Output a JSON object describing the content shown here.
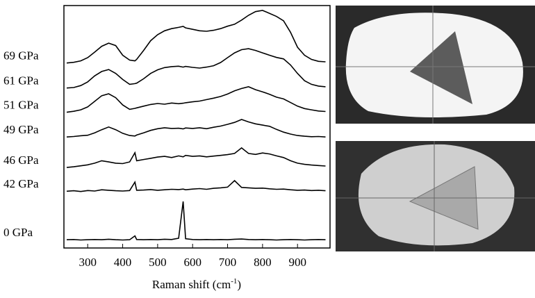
{
  "chart_data": {
    "type": "line",
    "xlabel": [
      "Raman shift (cm",
      "-1",
      ")"
    ],
    "x": [
      240,
      260,
      280,
      300,
      320,
      340,
      360,
      380,
      400,
      420,
      435,
      440,
      460,
      480,
      500,
      520,
      540,
      560,
      573,
      580,
      600,
      620,
      640,
      660,
      680,
      700,
      720,
      740,
      760,
      780,
      800,
      820,
      840,
      860,
      880,
      900,
      920,
      940,
      960,
      980
    ],
    "xlim": [
      232,
      993
    ],
    "xticks": [
      300,
      400,
      500,
      600,
      700,
      800,
      900
    ],
    "ylim": [
      0,
      100
    ],
    "series": [
      {
        "name": "69 GPa",
        "color": "#000000",
        "values": [
          76.3,
          76.6,
          77.2,
          78.5,
          80.8,
          83.2,
          84.5,
          83.5,
          79.5,
          77.5,
          77.2,
          77.8,
          81.5,
          85.5,
          88,
          89.6,
          90.5,
          91,
          91.4,
          90.8,
          90.2,
          89.6,
          89.4,
          89.8,
          90.5,
          91.5,
          92.3,
          94,
          96,
          97.5,
          98,
          96.8,
          95.5,
          93.7,
          89,
          82.8,
          79.5,
          77.8,
          77,
          76.8
        ]
      },
      {
        "name": "61 GPa",
        "color": "#000000",
        "values": [
          66,
          66.2,
          67,
          68.5,
          71,
          72.8,
          73.6,
          72,
          69.5,
          67.5,
          67.8,
          68,
          69.8,
          72,
          73.5,
          74.4,
          74.8,
          75,
          74.6,
          74.9,
          74.5,
          74.2,
          74.6,
          75.2,
          76.5,
          78.5,
          80.5,
          81.8,
          82.2,
          81.5,
          80.5,
          79.5,
          78.6,
          78,
          75.5,
          72,
          69,
          67.5,
          66.8,
          66.5
        ]
      },
      {
        "name": "51 GPa",
        "color": "#000000",
        "values": [
          56,
          56.4,
          57,
          58.2,
          60.5,
          62.8,
          63.6,
          62,
          59,
          57.2,
          57.6,
          57.8,
          58.5,
          59.2,
          59.6,
          59.3,
          59.8,
          59.5,
          59.7,
          59.9,
          60.3,
          60.6,
          61.2,
          61.8,
          62.5,
          63.5,
          64.8,
          65.8,
          66.5,
          65.3,
          64.4,
          63.4,
          62.2,
          61.5,
          60,
          58.5,
          57.5,
          57,
          56.5,
          56.3
        ]
      },
      {
        "name": "49 GPa",
        "color": "#000000",
        "values": [
          45.8,
          46,
          46.3,
          46.5,
          47.5,
          48.8,
          49.9,
          48.8,
          47.3,
          46.4,
          46.2,
          46.6,
          47.5,
          48.5,
          49.2,
          49.6,
          49.3,
          49.4,
          49.1,
          49.5,
          49.3,
          49.6,
          49.2,
          49.8,
          50.3,
          51,
          51.8,
          53,
          52,
          51.2,
          50.7,
          50.2,
          48.9,
          47.8,
          47,
          46.4,
          46.1,
          45.9,
          46,
          45.8
        ]
      },
      {
        "name": "46 GPa",
        "color": "#000000",
        "values": [
          33.2,
          33.5,
          33.9,
          34.3,
          35,
          36,
          35.5,
          35,
          34.8,
          35.5,
          39.3,
          36,
          36.5,
          37,
          37.5,
          37.8,
          37.3,
          38,
          37.6,
          38.2,
          37.8,
          38,
          37.6,
          37.9,
          38.2,
          38.5,
          39,
          41.3,
          39,
          38.6,
          39.2,
          38.8,
          38,
          37.3,
          36,
          35,
          34.5,
          34.2,
          34,
          33.8
        ]
      },
      {
        "name": "42 GPa",
        "color": "#000000",
        "values": [
          23.4,
          23.6,
          23.3,
          23.7,
          23.5,
          24,
          23.8,
          23.6,
          23.5,
          23.7,
          27.2,
          23.8,
          23.9,
          24.1,
          23.8,
          24,
          24.2,
          24.1,
          24.3,
          24,
          24.3,
          24.5,
          24.2,
          24.6,
          24.8,
          25.1,
          27.8,
          25,
          24.8,
          24.6,
          24.7,
          24.4,
          24.2,
          24.3,
          24,
          23.8,
          23.9,
          23.7,
          23.8,
          23.6
        ]
      },
      {
        "name": "0 GPa",
        "color": "#000000",
        "values": [
          3.4,
          3.5,
          3.3,
          3.4,
          3.5,
          3.4,
          3.6,
          3.4,
          3.3,
          3.4,
          5,
          3.5,
          3.4,
          3.5,
          3.4,
          3.6,
          3.5,
          4,
          19.2,
          3.8,
          3.5,
          3.4,
          3.5,
          3.4,
          3.5,
          3.4,
          3.6,
          3.7,
          3.5,
          3.4,
          3.5,
          3.4,
          3.3,
          3.4,
          3.5,
          3.4,
          3.3,
          3.4,
          3.5,
          3.4
        ]
      }
    ]
  }
}
